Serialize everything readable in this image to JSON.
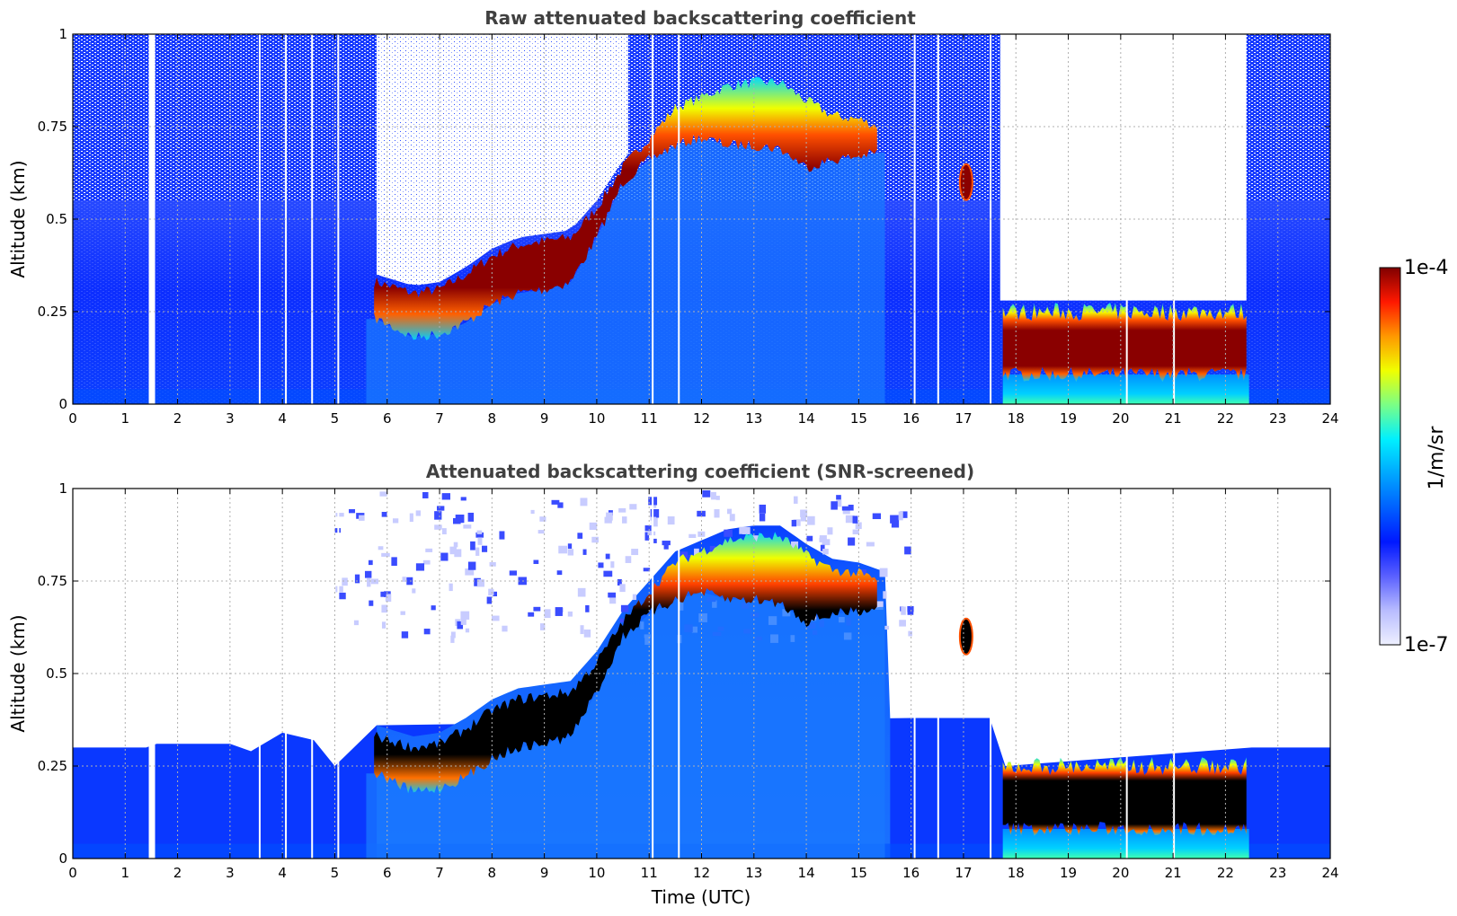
{
  "chart_data": [
    {
      "type": "heatmap",
      "title": "Raw attenuated backscattering coefficient",
      "xlabel": "",
      "ylabel": "Altitude (km)",
      "xlim": [
        0,
        24
      ],
      "ylim": [
        0,
        1
      ],
      "xticks": [
        "0",
        "1",
        "2",
        "3",
        "4",
        "5",
        "6",
        "7",
        "8",
        "9",
        "10",
        "11",
        "12",
        "13",
        "14",
        "15",
        "16",
        "17",
        "18",
        "19",
        "20",
        "21",
        "22",
        "23",
        "24"
      ],
      "yticks": [
        "0",
        "0.25",
        "0.5",
        "0.75",
        "1"
      ],
      "grid": true,
      "screened": false,
      "layer_top_km": [
        [
          5.8,
          0.33
        ],
        [
          6.5,
          0.3
        ],
        [
          7.0,
          0.31
        ],
        [
          7.5,
          0.35
        ],
        [
          8.0,
          0.4
        ],
        [
          8.5,
          0.43
        ],
        [
          9.0,
          0.44
        ],
        [
          9.5,
          0.45
        ],
        [
          10.0,
          0.53
        ],
        [
          10.5,
          0.64
        ],
        [
          11.0,
          0.72
        ],
        [
          11.5,
          0.8
        ],
        [
          12.0,
          0.83
        ],
        [
          12.5,
          0.86
        ],
        [
          13.0,
          0.87
        ],
        [
          13.5,
          0.87
        ],
        [
          14.0,
          0.82
        ],
        [
          14.5,
          0.78
        ],
        [
          15.0,
          0.77
        ],
        [
          15.4,
          0.75
        ]
      ],
      "layer_base_km": [
        [
          5.8,
          0.23
        ],
        [
          6.5,
          0.18
        ],
        [
          7.0,
          0.19
        ],
        [
          7.5,
          0.22
        ],
        [
          8.0,
          0.27
        ],
        [
          8.5,
          0.3
        ],
        [
          9.0,
          0.31
        ],
        [
          9.5,
          0.33
        ],
        [
          10.0,
          0.45
        ],
        [
          10.5,
          0.6
        ],
        [
          11.0,
          0.66
        ],
        [
          11.5,
          0.7
        ],
        [
          12.0,
          0.72
        ],
        [
          12.5,
          0.7
        ],
        [
          13.0,
          0.7
        ],
        [
          13.5,
          0.69
        ],
        [
          14.0,
          0.64
        ],
        [
          14.5,
          0.66
        ],
        [
          15.0,
          0.67
        ],
        [
          15.4,
          0.68
        ]
      ],
      "night_layer": {
        "x_start": 17.75,
        "x_end": 22.45,
        "base_km": 0.08,
        "top_km": 0.27
      },
      "cloud_patch": {
        "x": 17.05,
        "y_km": 0.6
      }
    },
    {
      "type": "heatmap",
      "title": "Attenuated backscattering coefficient (SNR-screened)",
      "xlabel": "Time (UTC)",
      "ylabel": "Altitude (km)",
      "xlim": [
        0,
        24
      ],
      "ylim": [
        0,
        1
      ],
      "xticks": [
        "0",
        "1",
        "2",
        "3",
        "4",
        "5",
        "6",
        "7",
        "8",
        "9",
        "10",
        "11",
        "12",
        "13",
        "14",
        "15",
        "16",
        "17",
        "18",
        "19",
        "20",
        "21",
        "22",
        "23",
        "24"
      ],
      "yticks": [
        "0",
        "0.25",
        "0.5",
        "0.75",
        "1"
      ],
      "grid": true,
      "screened": true,
      "screen_top_km": [
        [
          0,
          0.3
        ],
        [
          1.4,
          0.3
        ],
        [
          1.6,
          0.31
        ],
        [
          3.0,
          0.31
        ],
        [
          3.4,
          0.29
        ],
        [
          4.0,
          0.34
        ],
        [
          4.6,
          0.32
        ],
        [
          5.0,
          0.25
        ],
        [
          5.8,
          0.36
        ],
        [
          16.0,
          0.38
        ],
        [
          17.5,
          0.38
        ],
        [
          17.8,
          0.25
        ],
        [
          22.5,
          0.3
        ],
        [
          24.0,
          0.3
        ]
      ]
    }
  ],
  "colorbar": {
    "label": "1/m/sr",
    "max_label": "1e-4",
    "min_label": "1e-7",
    "scale": "log",
    "colors": [
      "#eef0ff",
      "#b8bcff",
      "#5a60ff",
      "#0018ff",
      "#0060ff",
      "#00a8ff",
      "#00f0ff",
      "#7aff86",
      "#f0ff00",
      "#ff9800",
      "#ff1800",
      "#800000"
    ]
  }
}
